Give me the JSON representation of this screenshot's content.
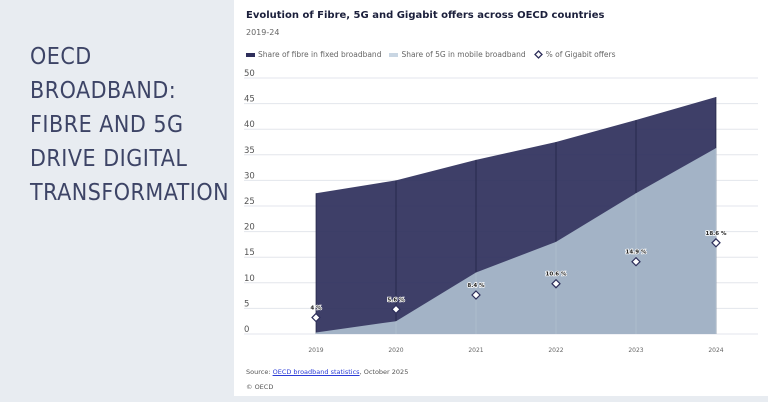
{
  "headline": [
    "OECD BROADBAND:",
    "FIBRE AND 5G",
    "DRIVE DIGITAL",
    "TRANSFORMATION"
  ],
  "chart_data": {
    "type": "area",
    "title": "Evolution of Fibre, 5G and Gigabit offers across OECD countries",
    "subtitle": "2019-24",
    "categories": [
      "2019",
      "2020",
      "2021",
      "2022",
      "2023",
      "2024"
    ],
    "ylim": [
      0,
      50
    ],
    "yticks": [
      0,
      5,
      10,
      15,
      20,
      25,
      30,
      35,
      40,
      45,
      50
    ],
    "grid": true,
    "legend_placement": "top-left",
    "series": [
      {
        "name": "Share of fibre in fixed broadband",
        "type": "area",
        "color": "#2e2f5b",
        "values": [
          27.5,
          30,
          34,
          37.5,
          41.8,
          46.3
        ]
      },
      {
        "name": "Share of 5G in mobile broadband",
        "type": "area",
        "color": "#a3b3c6",
        "values": [
          0.3,
          2.5,
          12,
          18,
          27.5,
          36.3
        ]
      },
      {
        "name": "% of Gigabit offers",
        "type": "scatter",
        "marker": "diamond",
        "values": [
          4,
          5.6,
          8.4,
          10.6,
          14.9,
          18.6
        ],
        "labels": [
          "4 %",
          "5.6 %",
          "8.4 %",
          "10.6 %",
          "14.9 %",
          "18.6 %"
        ]
      }
    ]
  },
  "source": {
    "prefix": "Source: ",
    "link": "OECD broadband statistics",
    "suffix": ", October 2025"
  },
  "copyright": "© OECD"
}
